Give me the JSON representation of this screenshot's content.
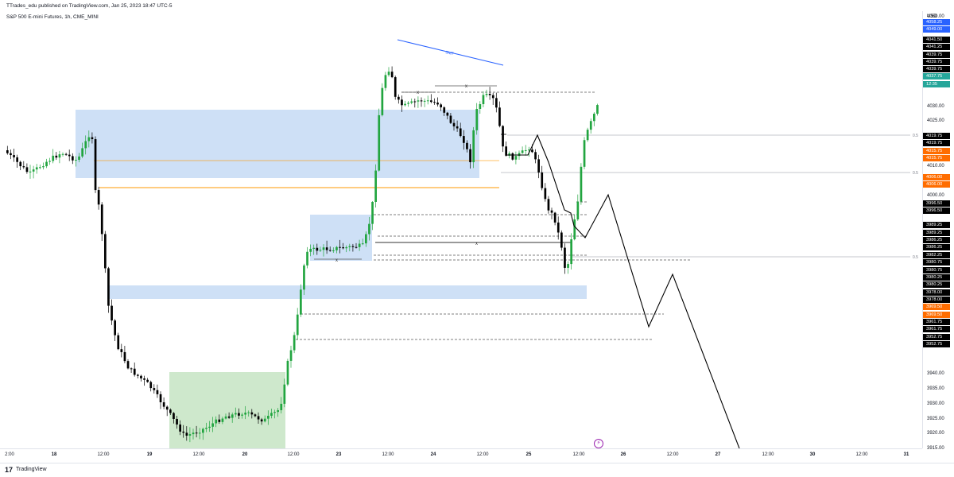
{
  "header": {
    "published": "TTrades_edu published on TradingView.com, Jan 25, 2023 18:47 UTC-5",
    "symbol": "S&P 500 E-mini Futures, 1h, CME_MINI"
  },
  "price_axis": {
    "currency": "USD",
    "range": [
      3915,
      4062
    ],
    "ticks": [
      "4060.00",
      "4030.00",
      "4025.00",
      "4010.00",
      "4000.00",
      "3940.00",
      "3935.00",
      "3930.00",
      "3925.00",
      "3920.00",
      "3915.00"
    ],
    "tags": [
      {
        "label": "4058.25",
        "price": 4058.25,
        "bg": "#2962ff",
        "fg": "#ffffff"
      },
      {
        "label": "4049.00",
        "price": 4055.8,
        "bg": "#2962ff",
        "fg": "#ffffff"
      },
      {
        "label": "4041.50",
        "price": 4052.3,
        "bg": "#000000",
        "fg": "#ffffff"
      },
      {
        "label": "4041.25",
        "price": 4049.9,
        "bg": "#000000",
        "fg": "#ffffff"
      },
      {
        "label": "4039.75",
        "price": 4047.4,
        "bg": "#000000",
        "fg": "#ffffff"
      },
      {
        "label": "4039.75",
        "price": 4045.0,
        "bg": "#000000",
        "fg": "#ffffff"
      },
      {
        "label": "4039.75",
        "price": 4042.5,
        "bg": "#000000",
        "fg": "#ffffff"
      },
      {
        "label": "4037.75",
        "price": 4040.0,
        "bg": "#26a69a",
        "fg": "#ffffff"
      },
      {
        "label": "12:35",
        "price": 4037.5,
        "bg": "#26a69a",
        "fg": "#ffffff"
      },
      {
        "label": "4019.75",
        "price": 4020.0,
        "bg": "#000000",
        "fg": "#ffffff"
      },
      {
        "label": "4019.75",
        "price": 4017.5,
        "bg": "#000000",
        "fg": "#ffffff"
      },
      {
        "label": "4015.75",
        "price": 4015.0,
        "bg": "#ff6d00",
        "fg": "#ffffff"
      },
      {
        "label": "4015.75",
        "price": 4012.5,
        "bg": "#ff6d00",
        "fg": "#ffffff"
      },
      {
        "label": "4006.00",
        "price": 4006.2,
        "bg": "#ff6d00",
        "fg": "#ffffff"
      },
      {
        "label": "4006.00",
        "price": 4003.7,
        "bg": "#ff6d00",
        "fg": "#ffffff"
      },
      {
        "label": "3996.50",
        "price": 3997.3,
        "bg": "#000000",
        "fg": "#ffffff"
      },
      {
        "label": "3996.50",
        "price": 3994.8,
        "bg": "#000000",
        "fg": "#ffffff"
      },
      {
        "label": "3989.25",
        "price": 3990.0,
        "bg": "#000000",
        "fg": "#ffffff"
      },
      {
        "label": "3989.25",
        "price": 3987.5,
        "bg": "#000000",
        "fg": "#ffffff"
      },
      {
        "label": "3986.25",
        "price": 3985.0,
        "bg": "#000000",
        "fg": "#ffffff"
      },
      {
        "label": "3986.25",
        "price": 3982.5,
        "bg": "#000000",
        "fg": "#ffffff"
      },
      {
        "label": "3982.25",
        "price": 3980.0,
        "bg": "#000000",
        "fg": "#ffffff"
      },
      {
        "label": "3980.75",
        "price": 3977.5,
        "bg": "#000000",
        "fg": "#ffffff"
      },
      {
        "label": "3980.75",
        "price": 3975.0,
        "bg": "#000000",
        "fg": "#ffffff"
      },
      {
        "label": "3980.25",
        "price": 3972.5,
        "bg": "#000000",
        "fg": "#ffffff"
      },
      {
        "label": "3980.25",
        "price": 3970.0,
        "bg": "#000000",
        "fg": "#ffffff"
      },
      {
        "label": "3978.00",
        "price": 3967.5,
        "bg": "#000000",
        "fg": "#ffffff"
      },
      {
        "label": "3978.00",
        "price": 3965.0,
        "bg": "#000000",
        "fg": "#ffffff"
      },
      {
        "label": "3969.50",
        "price": 3962.5,
        "bg": "#ff6d00",
        "fg": "#ffffff"
      },
      {
        "label": "3969.50",
        "price": 3960.0,
        "bg": "#ff6d00",
        "fg": "#ffffff"
      },
      {
        "label": "3961.75",
        "price": 3957.5,
        "bg": "#000000",
        "fg": "#ffffff"
      },
      {
        "label": "3961.75",
        "price": 3955.0,
        "bg": "#000000",
        "fg": "#ffffff"
      },
      {
        "label": "3952.75",
        "price": 3952.5,
        "bg": "#000000",
        "fg": "#ffffff"
      },
      {
        "label": "3952.75",
        "price": 3950.0,
        "bg": "#000000",
        "fg": "#ffffff"
      }
    ]
  },
  "time_axis": {
    "labels": [
      "2:00",
      "18",
      "12:00",
      "19",
      "12:00",
      "20",
      "12:00",
      "23",
      "12:00",
      "24",
      "12:00",
      "25",
      "12:00",
      "26",
      "12:00",
      "27",
      "12:00",
      "30",
      "12:00",
      "31"
    ]
  },
  "annotations": {
    "smt": "SMT",
    "x_mark": "x",
    "half_label": "0.5"
  },
  "footer": {
    "brand": "TradingView",
    "logo_glyph": "17",
    "flash_glyph": "⚡"
  },
  "colors": {
    "bull": "#22a540",
    "bear": "#000000",
    "zone_blue": "#c9ddf5",
    "zone_green": "#c9e6c6",
    "orange_line": "#ff9800",
    "smt_line": "#2962ff"
  }
}
